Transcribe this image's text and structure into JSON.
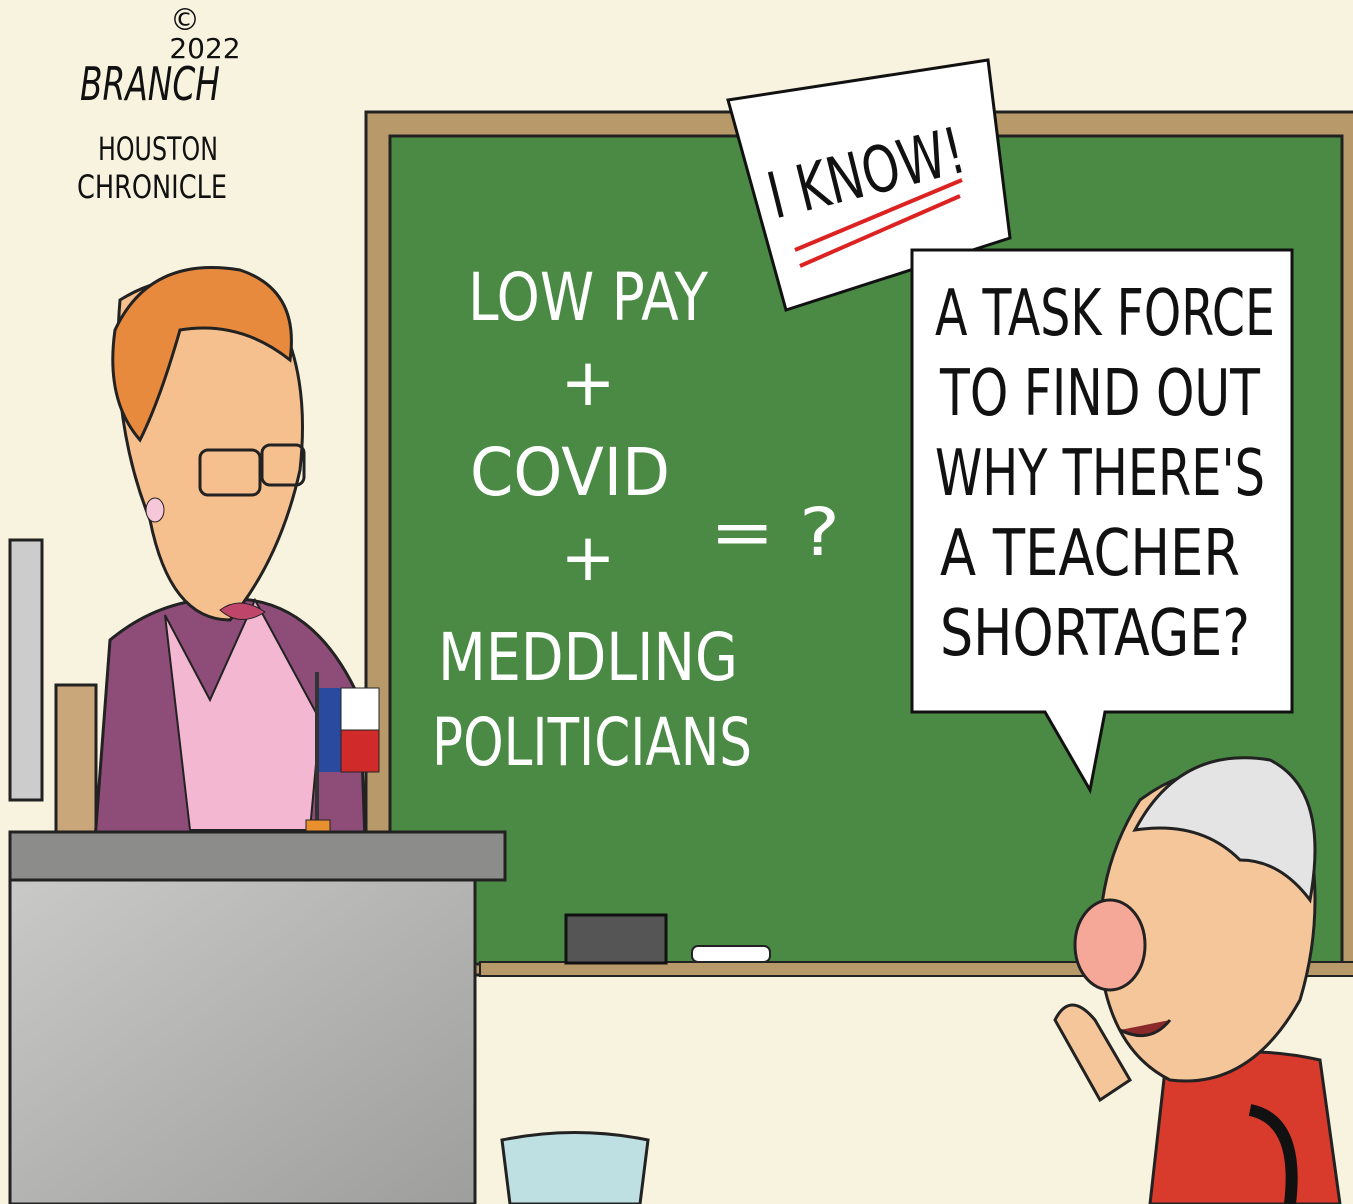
{
  "signature": {
    "copyright": "©",
    "year": "2022",
    "artist": "BRANCH",
    "publication": [
      "HOUSTON",
      "CHRONICLE"
    ]
  },
  "chalkboard": {
    "lines": [
      "LOW PAY",
      "+",
      "COVID",
      "+",
      "MEDDLING",
      "POLITICIANS"
    ],
    "result": "= ?"
  },
  "sign": "I KNOW!",
  "speech_bubble": {
    "lines": [
      "A TASK FORCE",
      "TO FIND OUT",
      "WHY THERE'S",
      "A TEACHER",
      "SHORTAGE?"
    ]
  }
}
